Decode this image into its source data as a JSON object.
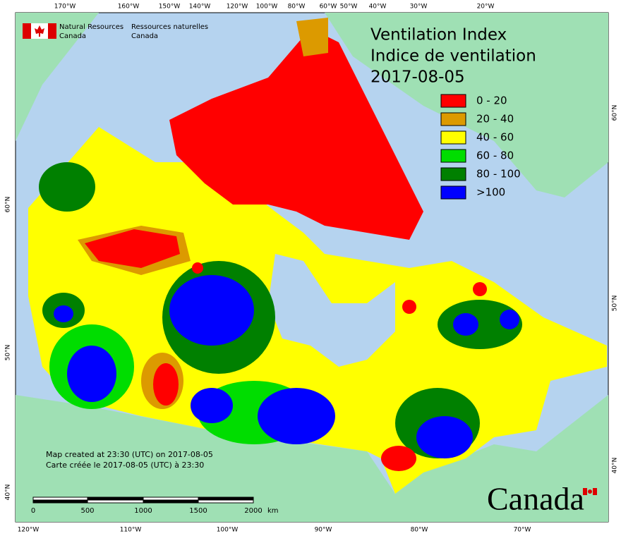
{
  "header": {
    "org_en": [
      "Natural Resources",
      "Canada"
    ],
    "org_fr": [
      "Ressources naturelles",
      "Canada"
    ]
  },
  "title": [
    "Ventilation Index",
    "Indice de ventilation",
    "2017-08-05"
  ],
  "legend": [
    {
      "label": "0 - 20",
      "color": "#ff0000"
    },
    {
      "label": "20 - 40",
      "color": "#dc9a00"
    },
    {
      "label": "40 - 60",
      "color": "#ffff00"
    },
    {
      "label": "60 - 80",
      "color": "#00dd00"
    },
    {
      "label": "80 - 100",
      "color": "#008000"
    },
    {
      "label": ">100",
      "color": "#0000ff"
    }
  ],
  "graticule": {
    "top": [
      "170°W",
      "160°W",
      "150°W",
      "140°W",
      "120°W",
      "100°W",
      "80°W",
      "60°W",
      "50°W",
      "40°W",
      "30°W",
      "20°W"
    ],
    "bottom": [
      "120°W",
      "110°W",
      "100°W",
      "90°W",
      "80°W",
      "70°W"
    ],
    "left": [
      "60°N",
      "50°N",
      "40°N"
    ],
    "right": [
      "60°N",
      "50°N",
      "40°N"
    ]
  },
  "notes": [
    "Map created at 23:30 (UTC) on 2017-08-05",
    "Carte créée le 2017-08-05 (UTC) à 23:30"
  ],
  "scale_bar": {
    "labels": [
      "0",
      "500",
      "1000",
      "1500",
      "2000"
    ],
    "unit": "km"
  },
  "wordmark": "Canada"
}
